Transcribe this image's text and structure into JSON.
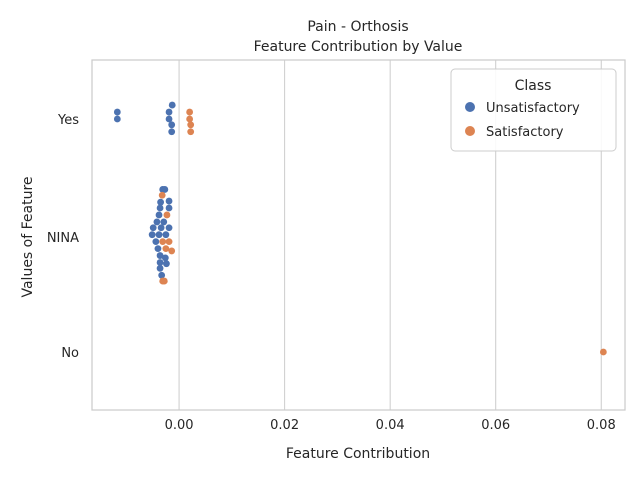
{
  "chart_data": {
    "type": "scatter",
    "subtype": "swarm",
    "title": "Pain - Orthosis",
    "subtitle": "Feature Contribution by Value",
    "xlabel": "Feature Contribution",
    "ylabel": "Values of Feature",
    "xlim": [
      -0.0165,
      0.0845
    ],
    "xticks": [
      0.0,
      0.02,
      0.04,
      0.06,
      0.08
    ],
    "xtick_labels": [
      "0.00",
      "0.02",
      "0.04",
      "0.06",
      "0.08"
    ],
    "categories": [
      "Yes",
      "NINA",
      "No"
    ],
    "grid": "vertical",
    "legend": {
      "title": "Class",
      "placement": "top-right",
      "entries": [
        "Unsatisfactory",
        "Satisfactory"
      ]
    },
    "colors": {
      "Unsatisfactory": "#4c72b0",
      "Satisfactory": "#dd8452",
      "grid": "#cccccc",
      "spine": "#cccccc"
    },
    "series": [
      {
        "name": "Unsatisfactory",
        "points": [
          {
            "x": -0.0117,
            "y": "Yes",
            "offset": -0.06
          },
          {
            "x": -0.0117,
            "y": "Yes",
            "offset": 0.0
          },
          {
            "x": -0.0013,
            "y": "Yes",
            "offset": -0.12
          },
          {
            "x": -0.0019,
            "y": "Yes",
            "offset": -0.06
          },
          {
            "x": -0.0019,
            "y": "Yes",
            "offset": 0.0
          },
          {
            "x": -0.0014,
            "y": "Yes",
            "offset": 0.05
          },
          {
            "x": -0.0014,
            "y": "Yes",
            "offset": 0.11
          },
          {
            "x": -0.0031,
            "y": "NINA",
            "offset": -0.41
          },
          {
            "x": -0.0027,
            "y": "NINA",
            "offset": -0.41
          },
          {
            "x": -0.0019,
            "y": "NINA",
            "offset": -0.31
          },
          {
            "x": -0.0035,
            "y": "NINA",
            "offset": -0.3
          },
          {
            "x": -0.0036,
            "y": "NINA",
            "offset": -0.25
          },
          {
            "x": -0.0019,
            "y": "NINA",
            "offset": -0.25
          },
          {
            "x": -0.0038,
            "y": "NINA",
            "offset": -0.19
          },
          {
            "x": -0.0029,
            "y": "NINA",
            "offset": -0.13
          },
          {
            "x": -0.0042,
            "y": "NINA",
            "offset": -0.13
          },
          {
            "x": -0.0049,
            "y": "NINA",
            "offset": -0.08
          },
          {
            "x": -0.0034,
            "y": "NINA",
            "offset": -0.08
          },
          {
            "x": -0.0019,
            "y": "NINA",
            "offset": -0.08
          },
          {
            "x": -0.0051,
            "y": "NINA",
            "offset": -0.02
          },
          {
            "x": -0.0038,
            "y": "NINA",
            "offset": -0.02
          },
          {
            "x": -0.0025,
            "y": "NINA",
            "offset": -0.02
          },
          {
            "x": -0.0044,
            "y": "NINA",
            "offset": 0.04
          },
          {
            "x": -0.004,
            "y": "NINA",
            "offset": 0.1
          },
          {
            "x": -0.0036,
            "y": "NINA",
            "offset": 0.16
          },
          {
            "x": -0.0036,
            "y": "NINA",
            "offset": 0.22
          },
          {
            "x": -0.0026,
            "y": "NINA",
            "offset": 0.18
          },
          {
            "x": -0.0024,
            "y": "NINA",
            "offset": 0.23
          },
          {
            "x": -0.0036,
            "y": "NINA",
            "offset": 0.27
          },
          {
            "x": -0.0033,
            "y": "NINA",
            "offset": 0.33
          }
        ]
      },
      {
        "name": "Satisfactory",
        "points": [
          {
            "x": 0.002,
            "y": "Yes",
            "offset": -0.06
          },
          {
            "x": 0.002,
            "y": "Yes",
            "offset": 0.0
          },
          {
            "x": 0.0022,
            "y": "Yes",
            "offset": 0.05
          },
          {
            "x": 0.0022,
            "y": "Yes",
            "offset": 0.11
          },
          {
            "x": -0.0032,
            "y": "NINA",
            "offset": -0.36
          },
          {
            "x": -0.0023,
            "y": "NINA",
            "offset": -0.19
          },
          {
            "x": -0.0031,
            "y": "NINA",
            "offset": 0.04
          },
          {
            "x": -0.0019,
            "y": "NINA",
            "offset": 0.04
          },
          {
            "x": -0.0025,
            "y": "NINA",
            "offset": 0.1
          },
          {
            "x": -0.0014,
            "y": "NINA",
            "offset": 0.12
          },
          {
            "x": -0.0031,
            "y": "NINA",
            "offset": 0.38
          },
          {
            "x": -0.0028,
            "y": "NINA",
            "offset": 0.38
          },
          {
            "x": 0.0804,
            "y": "No",
            "offset": 0.0
          }
        ]
      }
    ]
  }
}
